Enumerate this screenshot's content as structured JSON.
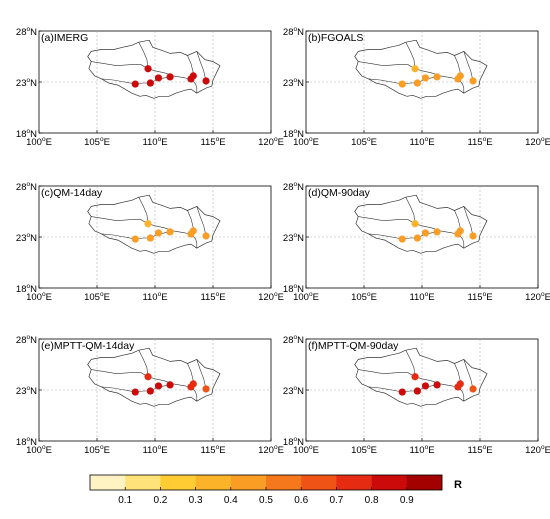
{
  "chart_data": {
    "type": "scatter",
    "x_ticks": [
      {
        "v": 100,
        "deg": "100",
        "hemi": "E"
      },
      {
        "v": 105,
        "deg": "105",
        "hemi": "E"
      },
      {
        "v": 110,
        "deg": "110",
        "hemi": "E"
      },
      {
        "v": 115,
        "deg": "115",
        "hemi": "E"
      },
      {
        "v": 120,
        "deg": "120",
        "hemi": "E"
      }
    ],
    "y_ticks": [
      {
        "v": 18,
        "deg": "18",
        "hemi": "N"
      },
      {
        "v": 23,
        "deg": "23",
        "hemi": "N"
      },
      {
        "v": 28,
        "deg": "28",
        "hemi": "N"
      }
    ],
    "xlim": [
      100,
      120
    ],
    "ylim": [
      18,
      28
    ],
    "grid": true,
    "colorbar": {
      "label": "R",
      "ticks": [
        "0.1",
        "0.2",
        "0.3",
        "0.4",
        "0.5",
        "0.6",
        "0.7",
        "0.8",
        "0.9"
      ],
      "range": [
        0,
        1
      ],
      "colors": [
        "#fff3c4",
        "#ffe37a",
        "#ffcc33",
        "#fbb42a",
        "#f99d24",
        "#f5781c",
        "#ef5416",
        "#e52c12",
        "#cc0a0a",
        "#a30000"
      ]
    },
    "panels": [
      {
        "title": "(a)IMERG",
        "points": [
          {
            "lon": 108.3,
            "lat": 22.8,
            "r": 0.85
          },
          {
            "lon": 109.4,
            "lat": 24.3,
            "r": 0.85
          },
          {
            "lon": 109.6,
            "lat": 22.9,
            "r": 0.85
          },
          {
            "lon": 110.3,
            "lat": 23.4,
            "r": 0.85
          },
          {
            "lon": 111.3,
            "lat": 23.5,
            "r": 0.85
          },
          {
            "lon": 113.1,
            "lat": 23.3,
            "r": 0.85
          },
          {
            "lon": 113.3,
            "lat": 23.6,
            "r": 0.85
          },
          {
            "lon": 114.4,
            "lat": 23.1,
            "r": 0.85
          }
        ]
      },
      {
        "title": "(b)FGOALS",
        "points": [
          {
            "lon": 108.3,
            "lat": 22.8,
            "r": 0.42
          },
          {
            "lon": 109.4,
            "lat": 24.3,
            "r": 0.35
          },
          {
            "lon": 109.6,
            "lat": 22.9,
            "r": 0.42
          },
          {
            "lon": 110.3,
            "lat": 23.4,
            "r": 0.45
          },
          {
            "lon": 111.3,
            "lat": 23.5,
            "r": 0.45
          },
          {
            "lon": 113.1,
            "lat": 23.3,
            "r": 0.45
          },
          {
            "lon": 113.3,
            "lat": 23.6,
            "r": 0.42
          },
          {
            "lon": 114.4,
            "lat": 23.1,
            "r": 0.4
          }
        ]
      },
      {
        "title": "(c)QM-14day",
        "points": [
          {
            "lon": 108.3,
            "lat": 22.8,
            "r": 0.42
          },
          {
            "lon": 109.4,
            "lat": 24.3,
            "r": 0.35
          },
          {
            "lon": 109.6,
            "lat": 22.9,
            "r": 0.42
          },
          {
            "lon": 110.3,
            "lat": 23.4,
            "r": 0.45
          },
          {
            "lon": 111.3,
            "lat": 23.5,
            "r": 0.45
          },
          {
            "lon": 113.1,
            "lat": 23.3,
            "r": 0.45
          },
          {
            "lon": 113.3,
            "lat": 23.6,
            "r": 0.42
          },
          {
            "lon": 114.4,
            "lat": 23.1,
            "r": 0.4
          }
        ]
      },
      {
        "title": "(d)QM-90day",
        "points": [
          {
            "lon": 108.3,
            "lat": 22.8,
            "r": 0.42
          },
          {
            "lon": 109.4,
            "lat": 24.3,
            "r": 0.35
          },
          {
            "lon": 109.6,
            "lat": 22.9,
            "r": 0.42
          },
          {
            "lon": 110.3,
            "lat": 23.4,
            "r": 0.45
          },
          {
            "lon": 111.3,
            "lat": 23.5,
            "r": 0.45
          },
          {
            "lon": 113.1,
            "lat": 23.3,
            "r": 0.45
          },
          {
            "lon": 113.3,
            "lat": 23.6,
            "r": 0.42
          },
          {
            "lon": 114.4,
            "lat": 23.1,
            "r": 0.4
          }
        ]
      },
      {
        "title": "(e)MPTT-QM-14day",
        "points": [
          {
            "lon": 108.3,
            "lat": 22.8,
            "r": 0.8
          },
          {
            "lon": 109.4,
            "lat": 24.3,
            "r": 0.7
          },
          {
            "lon": 109.6,
            "lat": 22.9,
            "r": 0.8
          },
          {
            "lon": 110.3,
            "lat": 23.4,
            "r": 0.8
          },
          {
            "lon": 111.3,
            "lat": 23.5,
            "r": 0.8
          },
          {
            "lon": 113.1,
            "lat": 23.3,
            "r": 0.75
          },
          {
            "lon": 113.3,
            "lat": 23.6,
            "r": 0.7
          },
          {
            "lon": 114.4,
            "lat": 23.1,
            "r": 0.65
          }
        ]
      },
      {
        "title": "(f)MPTT-QM-90day",
        "points": [
          {
            "lon": 108.3,
            "lat": 22.8,
            "r": 0.8
          },
          {
            "lon": 109.4,
            "lat": 24.3,
            "r": 0.7
          },
          {
            "lon": 109.6,
            "lat": 22.9,
            "r": 0.8
          },
          {
            "lon": 110.3,
            "lat": 23.4,
            "r": 0.8
          },
          {
            "lon": 111.3,
            "lat": 23.5,
            "r": 0.8
          },
          {
            "lon": 113.1,
            "lat": 23.3,
            "r": 0.75
          },
          {
            "lon": 113.3,
            "lat": 23.6,
            "r": 0.7
          },
          {
            "lon": 114.4,
            "lat": 23.1,
            "r": 0.65
          }
        ]
      }
    ]
  }
}
